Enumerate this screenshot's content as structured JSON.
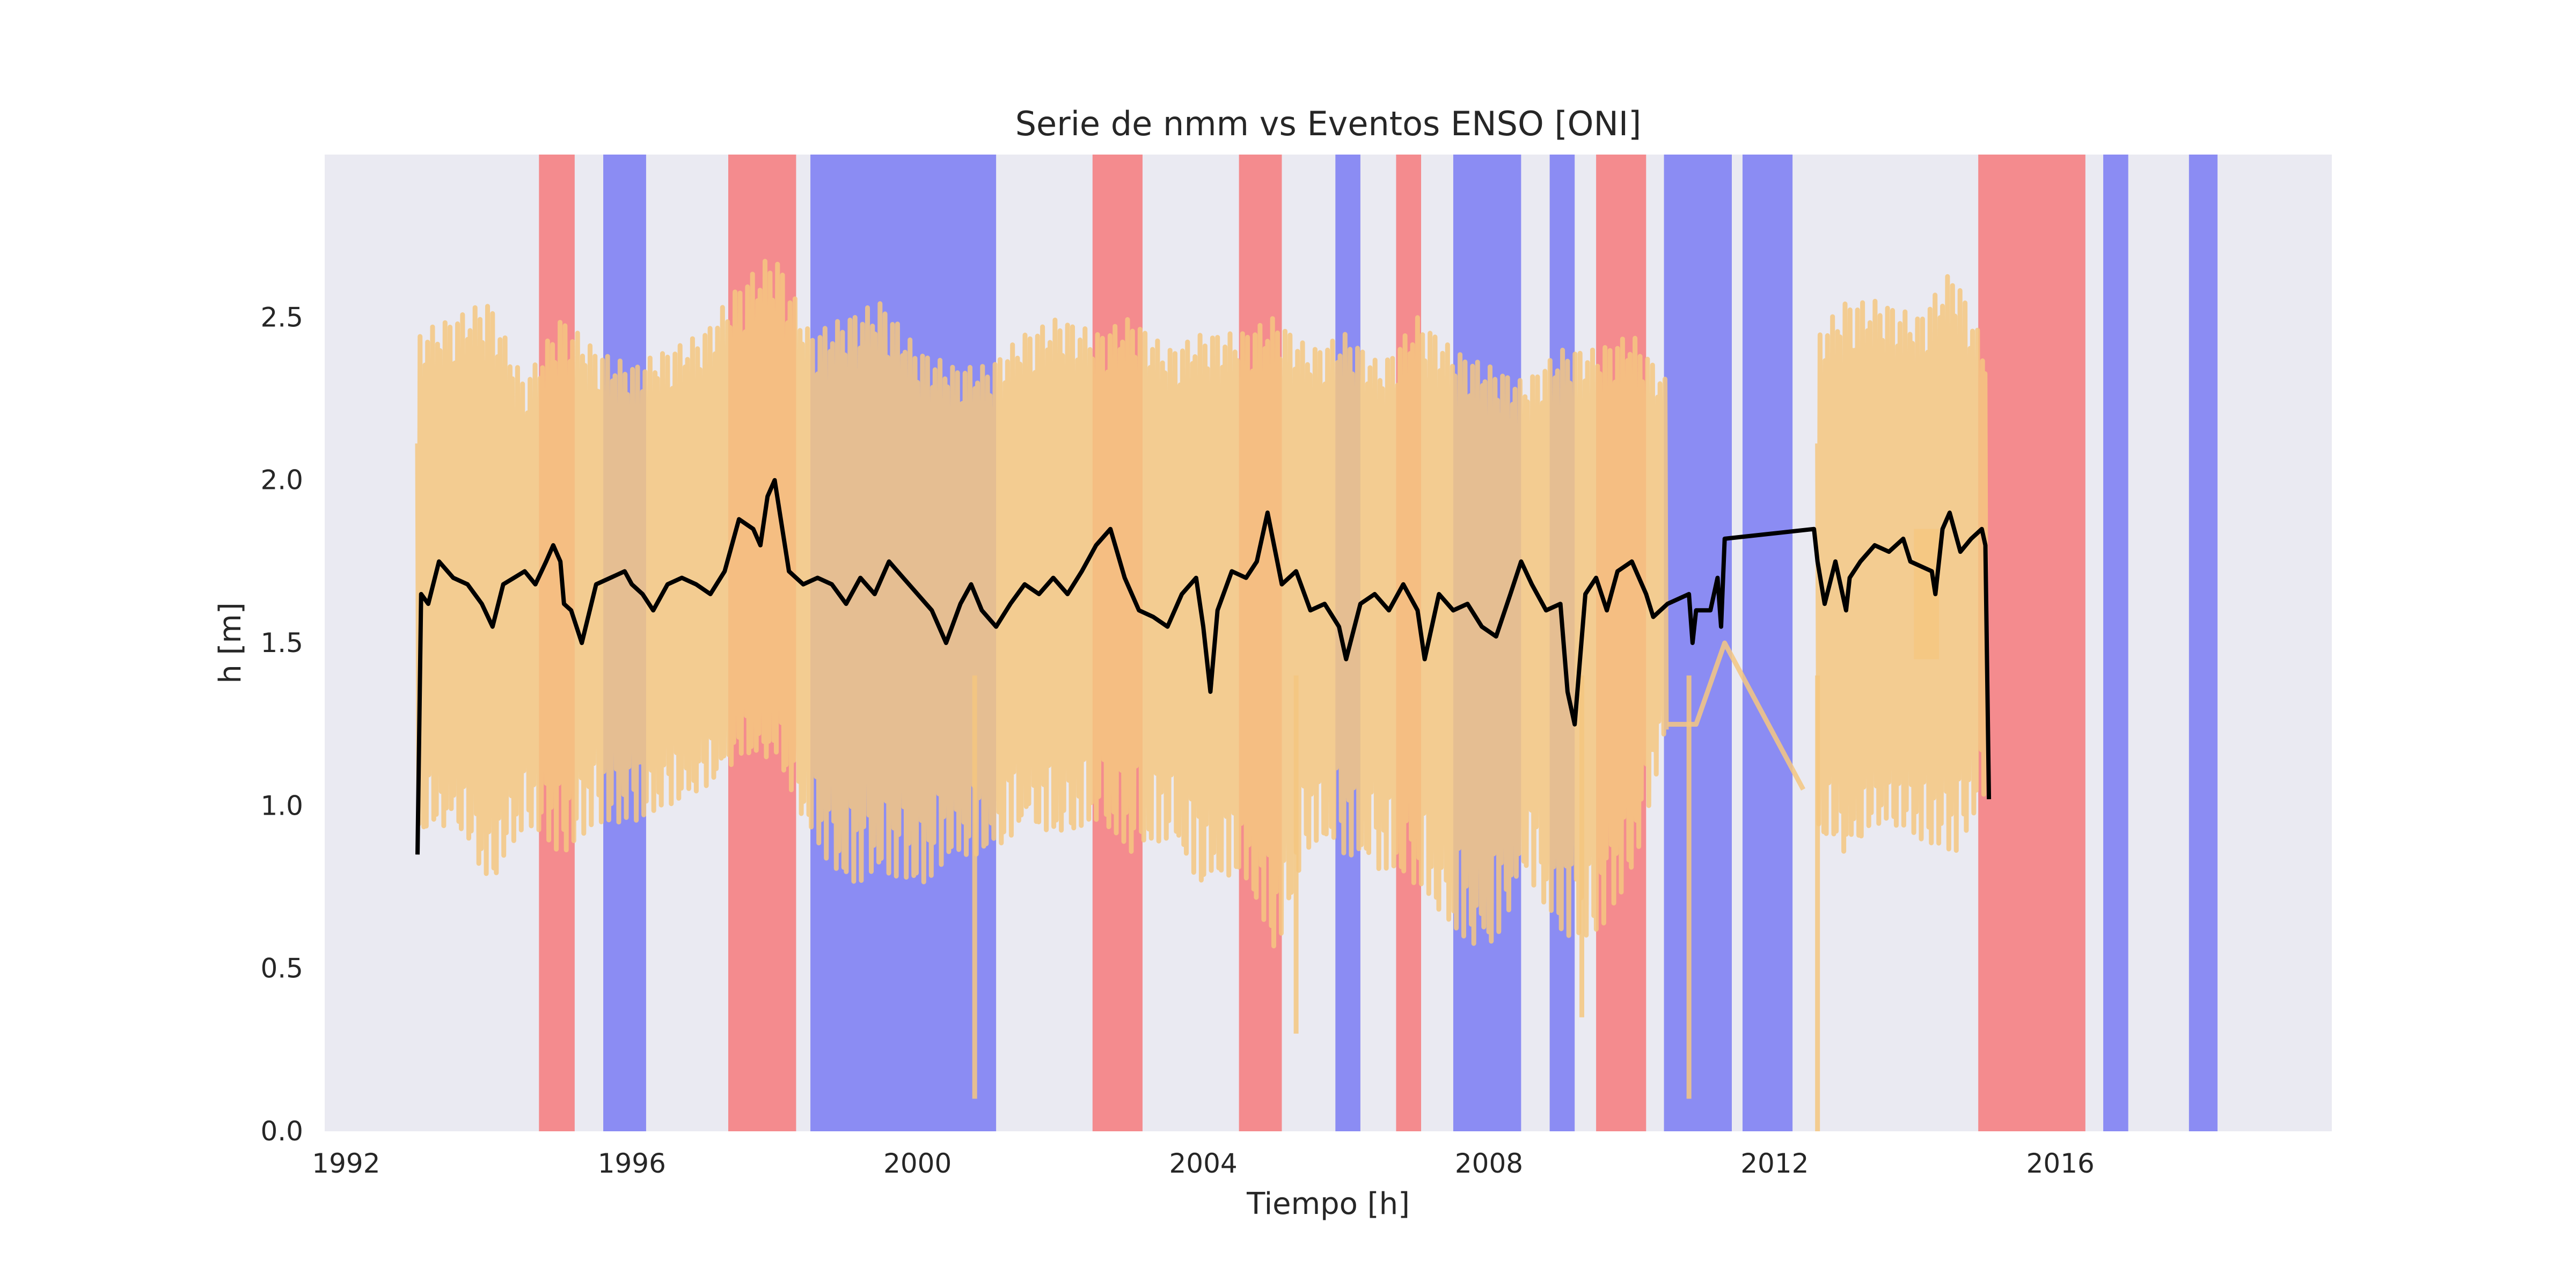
{
  "chart_data": {
    "type": "line",
    "title": "Serie de nmm vs Eventos ENSO [ONI]",
    "xlabel": "Tiempo [h]",
    "ylabel": "h [m]",
    "xlim": [
      1991.7,
      2019.8
    ],
    "ylim": [
      0.0,
      3.0
    ],
    "xticks": [
      "1992",
      "1996",
      "2000",
      "2004",
      "2008",
      "2012",
      "2016"
    ],
    "yticks": [
      "0.0",
      "0.5",
      "1.0",
      "1.5",
      "2.0",
      "2.5"
    ],
    "grid": false,
    "legend": "none",
    "colors": {
      "background": "#eaeaf2",
      "el_nino": "#f48b8e",
      "la_nina": "#8b8cf3",
      "hourly_series": "#f5c780",
      "mean_series": "#000000"
    },
    "enso_events": [
      {
        "phase": "el_nino",
        "start": 1994.7,
        "end": 1995.2
      },
      {
        "phase": "la_nina",
        "start": 1995.6,
        "end": 1996.2
      },
      {
        "phase": "el_nino",
        "start": 1997.35,
        "end": 1998.3
      },
      {
        "phase": "la_nina",
        "start": 1998.5,
        "end": 2001.1
      },
      {
        "phase": "el_nino",
        "start": 2002.45,
        "end": 2003.15
      },
      {
        "phase": "el_nino",
        "start": 2004.5,
        "end": 2005.1
      },
      {
        "phase": "la_nina",
        "start": 2005.85,
        "end": 2006.2
      },
      {
        "phase": "el_nino",
        "start": 2006.7,
        "end": 2007.05
      },
      {
        "phase": "la_nina",
        "start": 2007.5,
        "end": 2008.45
      },
      {
        "phase": "la_nina",
        "start": 2008.85,
        "end": 2009.2
      },
      {
        "phase": "el_nino",
        "start": 2009.5,
        "end": 2010.2
      },
      {
        "phase": "la_nina",
        "start": 2010.45,
        "end": 2011.4
      },
      {
        "phase": "la_nina",
        "start": 2011.55,
        "end": 2012.25
      },
      {
        "phase": "el_nino",
        "start": 2014.85,
        "end": 2016.35
      },
      {
        "phase": "la_nina",
        "start": 2016.6,
        "end": 2016.95
      },
      {
        "phase": "la_nina",
        "start": 2017.8,
        "end": 2018.2
      }
    ],
    "series": [
      {
        "style": "hourly",
        "envelope_x": [
          1993.0,
          1993.5,
          1994.0,
          1994.5,
          1995.0,
          1995.5,
          1996.0,
          1996.5,
          1997.0,
          1997.5,
          1998.0,
          1998.5,
          1999.0,
          1999.5,
          2000.0,
          2000.5,
          2001.0,
          2001.5,
          2002.0,
          2002.5,
          2003.0,
          2003.5,
          2004.0,
          2004.5,
          2005.0,
          2005.5,
          2006.0,
          2006.5,
          2007.0,
          2007.5,
          2008.0,
          2008.5,
          2009.0,
          2009.5,
          2010.0,
          2010.5
        ],
        "envelope_high": [
          2.45,
          2.5,
          2.55,
          2.3,
          2.5,
          2.4,
          2.35,
          2.4,
          2.45,
          2.6,
          2.7,
          2.45,
          2.5,
          2.55,
          2.4,
          2.35,
          2.35,
          2.45,
          2.5,
          2.45,
          2.5,
          2.4,
          2.45,
          2.45,
          2.5,
          2.4,
          2.45,
          2.35,
          2.5,
          2.4,
          2.35,
          2.3,
          2.4,
          2.4,
          2.45,
          2.3
        ],
        "envelope_low": [
          0.9,
          0.95,
          0.75,
          0.95,
          0.85,
          0.95,
          0.95,
          1.0,
          1.05,
          1.15,
          1.15,
          0.9,
          0.75,
          0.8,
          0.75,
          0.85,
          0.85,
          0.95,
          0.9,
          0.95,
          0.85,
          0.9,
          0.75,
          0.8,
          0.55,
          0.9,
          0.85,
          0.8,
          0.75,
          0.6,
          0.55,
          0.8,
          0.6,
          0.6,
          0.8,
          1.25
        ],
        "dropouts": [
          [
            2000.8,
            0.1
          ],
          [
            2005.3,
            0.3
          ],
          [
            2009.3,
            0.35
          ],
          [
            2010.8,
            0.1
          ],
          [
            2012.6,
            0.0
          ]
        ],
        "gap_line_x": [
          2010.5,
          2010.9,
          2011.3,
          2012.4
        ],
        "gap_line_y": [
          1.25,
          1.25,
          1.5,
          1.05
        ],
        "envelope2_x": [
          2012.6,
          2013.0,
          2013.5,
          2014.0,
          2014.5,
          2014.95
        ],
        "envelope2_high": [
          2.45,
          2.55,
          2.55,
          2.5,
          2.65,
          2.4
        ],
        "envelope2_low": [
          0.9,
          0.85,
          0.95,
          0.9,
          0.85,
          1.05
        ],
        "chunk_x": [
          2013.95,
          2014.3
        ],
        "chunk_high": 1.85,
        "chunk_low": 1.45
      },
      {
        "style": "mean",
        "x": [
          1993.0,
          1993.05,
          1993.15,
          1993.3,
          1993.5,
          1993.7,
          1993.9,
          1994.05,
          1994.2,
          1994.35,
          1994.5,
          1994.65,
          1994.8,
          1994.9,
          1995.0,
          1995.05,
          1995.15,
          1995.3,
          1995.5,
          1995.7,
          1995.9,
          1996.0,
          1996.15,
          1996.3,
          1996.5,
          1996.7,
          1996.9,
          1997.1,
          1997.3,
          1997.5,
          1997.7,
          1997.8,
          1997.9,
          1998.0,
          1998.2,
          1998.4,
          1998.6,
          1998.8,
          1999.0,
          1999.2,
          1999.4,
          1999.6,
          1999.8,
          2000.0,
          2000.2,
          2000.4,
          2000.6,
          2000.75,
          2000.9,
          2001.1,
          2001.3,
          2001.5,
          2001.7,
          2001.9,
          2002.1,
          2002.3,
          2002.5,
          2002.7,
          2002.9,
          2003.1,
          2003.3,
          2003.5,
          2003.7,
          2003.9,
          2004.0,
          2004.1,
          2004.2,
          2004.4,
          2004.6,
          2004.75,
          2004.9,
          2005.1,
          2005.3,
          2005.5,
          2005.7,
          2005.9,
          2006.0,
          2006.2,
          2006.4,
          2006.6,
          2006.8,
          2007.0,
          2007.1,
          2007.3,
          2007.5,
          2007.7,
          2007.9,
          2008.1,
          2008.3,
          2008.45,
          2008.6,
          2008.8,
          2009.0,
          2009.1,
          2009.2,
          2009.35,
          2009.5,
          2009.65,
          2009.8,
          2010.0,
          2010.2,
          2010.3,
          2010.5,
          2010.8,
          2010.85,
          2010.9,
          2011.1,
          2011.2,
          2011.25,
          2011.3,
          2012.55,
          2012.6,
          2012.7,
          2012.85,
          2013.0,
          2013.05,
          2013.2,
          2013.4,
          2013.6,
          2013.8,
          2013.9,
          2014.2,
          2014.25,
          2014.35,
          2014.45,
          2014.6,
          2014.75,
          2014.9,
          2014.95,
          2015.0
        ],
        "y": [
          0.85,
          1.65,
          1.62,
          1.75,
          1.7,
          1.68,
          1.62,
          1.55,
          1.68,
          1.7,
          1.72,
          1.68,
          1.75,
          1.8,
          1.75,
          1.62,
          1.6,
          1.5,
          1.68,
          1.7,
          1.72,
          1.68,
          1.65,
          1.6,
          1.68,
          1.7,
          1.68,
          1.65,
          1.72,
          1.88,
          1.85,
          1.8,
          1.95,
          2.0,
          1.72,
          1.68,
          1.7,
          1.68,
          1.62,
          1.7,
          1.65,
          1.75,
          1.7,
          1.65,
          1.6,
          1.5,
          1.62,
          1.68,
          1.6,
          1.55,
          1.62,
          1.68,
          1.65,
          1.7,
          1.65,
          1.72,
          1.8,
          1.85,
          1.7,
          1.6,
          1.58,
          1.55,
          1.65,
          1.7,
          1.55,
          1.35,
          1.6,
          1.72,
          1.7,
          1.75,
          1.9,
          1.68,
          1.72,
          1.6,
          1.62,
          1.55,
          1.45,
          1.62,
          1.65,
          1.6,
          1.68,
          1.6,
          1.45,
          1.65,
          1.6,
          1.62,
          1.55,
          1.52,
          1.65,
          1.75,
          1.68,
          1.6,
          1.62,
          1.35,
          1.25,
          1.65,
          1.7,
          1.6,
          1.72,
          1.75,
          1.65,
          1.58,
          1.62,
          1.65,
          1.5,
          1.6,
          1.6,
          1.7,
          1.55,
          1.82,
          1.85,
          1.75,
          1.62,
          1.75,
          1.6,
          1.7,
          1.75,
          1.8,
          1.78,
          1.82,
          1.75,
          1.72,
          1.65,
          1.85,
          1.9,
          1.78,
          1.82,
          1.85,
          1.8,
          1.02
        ]
      }
    ]
  }
}
